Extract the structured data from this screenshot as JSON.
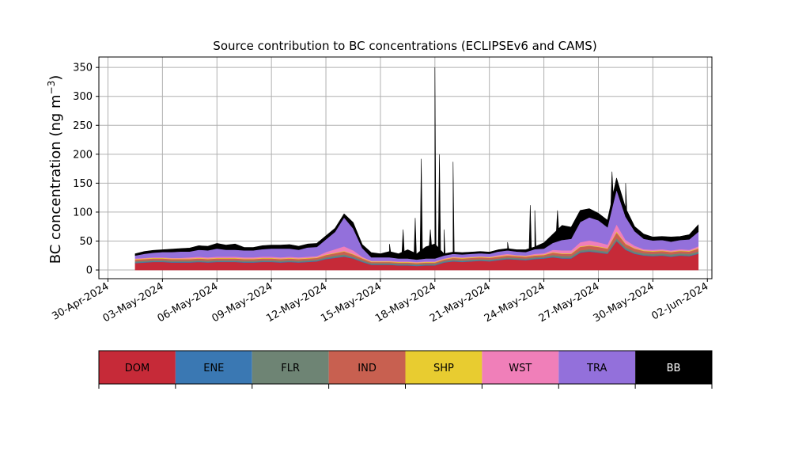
{
  "chart_data": {
    "type": "area",
    "title": "Source contribution to BC concentrations (ECLIPSEv6 and CAMS)",
    "ylabel": "BC concentration (ng m",
    "ylabel_sup": "−3",
    "ylabel_close": ")",
    "xlabel": "",
    "ylim": [
      -15,
      368
    ],
    "xlim": [
      "2024-04-29 12:00",
      "2024-06-02 06:00"
    ],
    "grid": true,
    "stacked": true,
    "y_ticks": [
      0,
      50,
      100,
      150,
      200,
      250,
      300,
      350
    ],
    "x_ticks": [
      {
        "date": "2024-04-30",
        "label": "30-Apr-2024"
      },
      {
        "date": "2024-05-03",
        "label": "03-May-2024"
      },
      {
        "date": "2024-05-06",
        "label": "06-May-2024"
      },
      {
        "date": "2024-05-09",
        "label": "09-May-2024"
      },
      {
        "date": "2024-05-12",
        "label": "12-May-2024"
      },
      {
        "date": "2024-05-15",
        "label": "15-May-2024"
      },
      {
        "date": "2024-05-18",
        "label": "18-May-2024"
      },
      {
        "date": "2024-05-21",
        "label": "21-May-2024"
      },
      {
        "date": "2024-05-24",
        "label": "24-May-2024"
      },
      {
        "date": "2024-05-27",
        "label": "27-May-2024"
      },
      {
        "date": "2024-05-30",
        "label": "30-May-2024"
      },
      {
        "date": "2024-06-02",
        "label": "02-Jun-2024"
      }
    ],
    "x_dates": [
      "2024-05-01 12:00",
      "2024-05-02 00:00",
      "2024-05-02 12:00",
      "2024-05-03 00:00",
      "2024-05-03 12:00",
      "2024-05-04 00:00",
      "2024-05-04 12:00",
      "2024-05-05 00:00",
      "2024-05-05 12:00",
      "2024-05-06 00:00",
      "2024-05-06 12:00",
      "2024-05-07 00:00",
      "2024-05-07 12:00",
      "2024-05-08 00:00",
      "2024-05-08 12:00",
      "2024-05-09 00:00",
      "2024-05-09 12:00",
      "2024-05-10 00:00",
      "2024-05-10 12:00",
      "2024-05-11 00:00",
      "2024-05-11 12:00",
      "2024-05-12 00:00",
      "2024-05-12 12:00",
      "2024-05-13 00:00",
      "2024-05-13 12:00",
      "2024-05-14 00:00",
      "2024-05-14 12:00",
      "2024-05-15 00:00",
      "2024-05-15 12:00",
      "2024-05-16 00:00",
      "2024-05-16 12:00",
      "2024-05-17 00:00",
      "2024-05-17 12:00",
      "2024-05-18 00:00",
      "2024-05-18 12:00",
      "2024-05-19 00:00",
      "2024-05-19 12:00",
      "2024-05-20 00:00",
      "2024-05-20 12:00",
      "2024-05-21 00:00",
      "2024-05-21 12:00",
      "2024-05-22 00:00",
      "2024-05-22 12:00",
      "2024-05-23 00:00",
      "2024-05-23 12:00",
      "2024-05-24 00:00",
      "2024-05-24 12:00",
      "2024-05-25 00:00",
      "2024-05-25 12:00",
      "2024-05-26 00:00",
      "2024-05-26 12:00",
      "2024-05-27 00:00",
      "2024-05-27 12:00",
      "2024-05-28 00:00",
      "2024-05-28 12:00",
      "2024-05-29 00:00",
      "2024-05-29 12:00",
      "2024-05-30 00:00",
      "2024-05-30 12:00",
      "2024-05-31 00:00",
      "2024-05-31 12:00",
      "2024-06-01 00:00",
      "2024-06-01 12:00"
    ],
    "series": [
      {
        "name": "DOM",
        "color": "#c62a38",
        "values": [
          12,
          13,
          14,
          14,
          13,
          13,
          13,
          14,
          13,
          14,
          14,
          14,
          13,
          13,
          14,
          14,
          13,
          14,
          13,
          14,
          15,
          19,
          21,
          23,
          20,
          14,
          9,
          9,
          9,
          8,
          8,
          7,
          8,
          8,
          13,
          15,
          14,
          15,
          16,
          15,
          17,
          19,
          18,
          17,
          19,
          20,
          22,
          20,
          20,
          30,
          32,
          30,
          28,
          50,
          35,
          28,
          25,
          24,
          25,
          23,
          25,
          24,
          28
        ]
      },
      {
        "name": "ENE",
        "color": "#3a78b3",
        "values": [
          1,
          1,
          1,
          1,
          1,
          1,
          1,
          1,
          1,
          1,
          1,
          1,
          1,
          1,
          1,
          1,
          1,
          1,
          1,
          1,
          1,
          1,
          1,
          1,
          1,
          1,
          1,
          1,
          1,
          1,
          1,
          1,
          1,
          1,
          1,
          1,
          1,
          1,
          1,
          1,
          1,
          1,
          1,
          1,
          1,
          1,
          1,
          1,
          1,
          1,
          1,
          1,
          1,
          1,
          1,
          1,
          1,
          1,
          1,
          1,
          1,
          1,
          1
        ]
      },
      {
        "name": "FLR",
        "color": "#6e8474",
        "values": [
          2,
          2,
          2,
          2,
          2,
          2,
          2,
          2,
          2,
          2,
          2,
          2,
          2,
          2,
          2,
          2,
          2,
          2,
          2,
          2,
          2,
          2,
          3,
          3,
          2,
          2,
          2,
          2,
          2,
          2,
          2,
          2,
          2,
          2,
          2,
          2,
          2,
          2,
          2,
          2,
          2,
          2,
          2,
          2,
          2,
          2,
          3,
          3,
          3,
          3,
          3,
          3,
          3,
          4,
          3,
          3,
          3,
          3,
          3,
          3,
          3,
          3,
          3
        ]
      },
      {
        "name": "IND",
        "color": "#c86050",
        "values": [
          3,
          3,
          3,
          3,
          3,
          3,
          3,
          3,
          3,
          3,
          3,
          3,
          3,
          3,
          3,
          3,
          3,
          3,
          3,
          3,
          3,
          4,
          4,
          5,
          4,
          3,
          2,
          2,
          2,
          2,
          2,
          2,
          2,
          2,
          2,
          3,
          3,
          3,
          3,
          3,
          3,
          3,
          3,
          3,
          3,
          3,
          4,
          4,
          4,
          6,
          6,
          6,
          5,
          10,
          6,
          5,
          4,
          4,
          4,
          4,
          4,
          4,
          5
        ]
      },
      {
        "name": "SHP",
        "color": "#e8cc30",
        "values": [
          1,
          1,
          1,
          1,
          1,
          1,
          1,
          1,
          1,
          1,
          1,
          1,
          1,
          1,
          1,
          1,
          1,
          1,
          1,
          1,
          1,
          1,
          1,
          1,
          1,
          1,
          1,
          1,
          1,
          1,
          1,
          1,
          1,
          1,
          1,
          1,
          1,
          1,
          1,
          1,
          1,
          1,
          1,
          1,
          1,
          1,
          1,
          1,
          1,
          1,
          1,
          1,
          1,
          2,
          1,
          1,
          1,
          1,
          1,
          1,
          1,
          1,
          1
        ]
      },
      {
        "name": "WST",
        "color": "#f07fb9",
        "values": [
          1,
          1,
          1,
          1,
          1,
          1,
          2,
          2,
          2,
          2,
          2,
          2,
          2,
          2,
          2,
          2,
          2,
          2,
          2,
          2,
          2,
          4,
          6,
          8,
          6,
          2,
          1,
          1,
          1,
          1,
          1,
          1,
          1,
          1,
          1,
          1,
          1,
          1,
          1,
          1,
          2,
          2,
          1,
          1,
          2,
          2,
          4,
          5,
          5,
          7,
          8,
          7,
          6,
          12,
          6,
          4,
          2,
          2,
          2,
          2,
          2,
          2,
          3
        ]
      },
      {
        "name": "TRA",
        "color": "#9370db",
        "values": [
          5,
          7,
          8,
          9,
          10,
          11,
          10,
          12,
          12,
          14,
          12,
          12,
          12,
          12,
          13,
          14,
          15,
          14,
          13,
          16,
          16,
          22,
          30,
          50,
          38,
          15,
          6,
          6,
          6,
          5,
          5,
          4,
          5,
          5,
          5,
          5,
          5,
          5,
          5,
          5,
          6,
          6,
          6,
          6,
          8,
          8,
          12,
          18,
          20,
          35,
          40,
          38,
          30,
          60,
          40,
          25,
          18,
          16,
          16,
          15,
          16,
          18,
          25
        ]
      },
      {
        "name": "BB",
        "color": "#000000",
        "values": [
          3,
          4,
          4,
          4,
          5,
          5,
          6,
          7,
          7,
          9,
          8,
          10,
          5,
          5,
          6,
          6,
          6,
          7,
          6,
          6,
          6,
          6,
          6,
          6,
          10,
          6,
          8,
          6,
          10,
          8,
          15,
          10,
          20,
          25,
          3,
          3,
          3,
          3,
          3,
          3,
          3,
          3,
          3,
          4,
          4,
          10,
          15,
          25,
          20,
          20,
          15,
          12,
          12,
          20,
          15,
          8,
          8,
          6,
          6,
          8,
          6,
          8,
          12
        ]
      }
    ],
    "bb_peaks": [
      {
        "date": "2024-05-15 12:00",
        "value": 45
      },
      {
        "date": "2024-05-16 06:00",
        "value": 70
      },
      {
        "date": "2024-05-16 22:00",
        "value": 90
      },
      {
        "date": "2024-05-17 06:00",
        "value": 192
      },
      {
        "date": "2024-05-17 18:00",
        "value": 70
      },
      {
        "date": "2024-05-18 00:00",
        "value": 350
      },
      {
        "date": "2024-05-18 06:00",
        "value": 200
      },
      {
        "date": "2024-05-18 12:00",
        "value": 70
      },
      {
        "date": "2024-05-19 00:00",
        "value": 187
      },
      {
        "date": "2024-05-22 00:00",
        "value": 48
      },
      {
        "date": "2024-05-23 06:00",
        "value": 112
      },
      {
        "date": "2024-05-23 12:00",
        "value": 103
      },
      {
        "date": "2024-05-24 18:00",
        "value": 103
      },
      {
        "date": "2024-05-27 18:00",
        "value": 170
      },
      {
        "date": "2024-05-28 12:00",
        "value": 150
      }
    ],
    "legend": {
      "position": "bottom",
      "labels": [
        "DOM",
        "ENE",
        "FLR",
        "IND",
        "SHP",
        "WST",
        "TRA",
        "BB"
      ],
      "colors": [
        "#c62a38",
        "#3a78b3",
        "#6e8474",
        "#c86050",
        "#e8cc30",
        "#f07fb9",
        "#9370db",
        "#000000"
      ]
    }
  }
}
